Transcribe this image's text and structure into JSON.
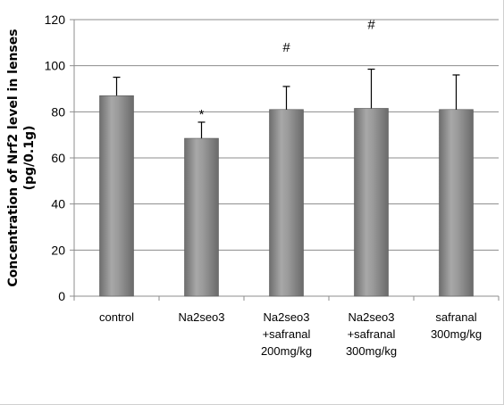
{
  "chart_data": {
    "type": "bar",
    "ylabel_lines": [
      "Concentration of Nrf2 level in lenses",
      "(pg/0.1g)"
    ],
    "xlabel": "",
    "ylim": [
      0,
      120
    ],
    "yticks": [
      0,
      20,
      40,
      60,
      80,
      100,
      120
    ],
    "grid": true,
    "categories": [
      [
        "control"
      ],
      [
        "Na2seo3"
      ],
      [
        "Na2seo3",
        "+safranal",
        "200mg/kg"
      ],
      [
        "Na2seo3",
        "+safranal",
        "300mg/kg"
      ],
      [
        "safranal",
        "300mg/kg"
      ]
    ],
    "values": [
      87,
      68.5,
      81,
      81.5,
      81
    ],
    "error_upper": [
      8,
      7,
      10,
      17,
      15
    ],
    "annotations": [
      "",
      "*",
      "#",
      "#",
      ""
    ],
    "annotation_tops": [
      null,
      77,
      106,
      116,
      null
    ],
    "bar_color": "#8a8a8a"
  }
}
